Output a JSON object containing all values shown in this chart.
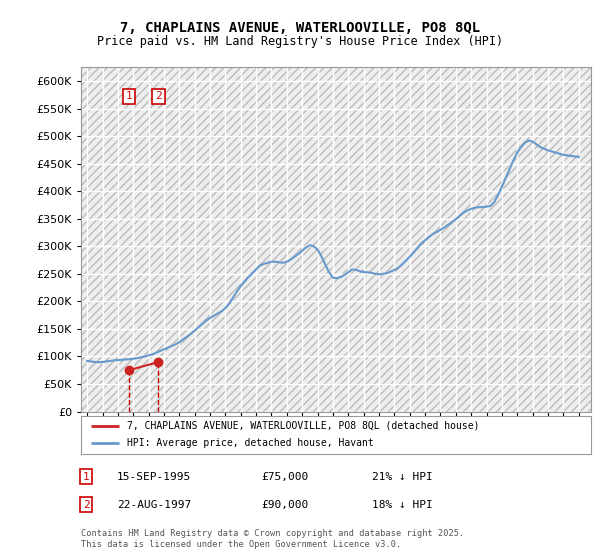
{
  "title": "7, CHAPLAINS AVENUE, WATERLOOVILLE, PO8 8QL",
  "subtitle": "Price paid vs. HM Land Registry's House Price Index (HPI)",
  "ylim": [
    0,
    625000
  ],
  "yticks": [
    0,
    50000,
    100000,
    150000,
    200000,
    250000,
    300000,
    350000,
    400000,
    450000,
    500000,
    550000,
    600000
  ],
  "xlim_start": 1992.6,
  "xlim_end": 2025.8,
  "background_color": "#ffffff",
  "plot_bg_color": "#eeeeee",
  "grid_color": "#ffffff",
  "hpi_color": "#6699cc",
  "price_color": "#cc2222",
  "annotation_color": "#cc0000",
  "legend_label_price": "7, CHAPLAINS AVENUE, WATERLOOVILLE, PO8 8QL (detached house)",
  "legend_label_hpi": "HPI: Average price, detached house, Havant",
  "point1_label": "1",
  "point1_date": "15-SEP-1995",
  "point1_x": 1995.71,
  "point1_y": 75000,
  "point1_text": "£75,000",
  "point1_pct": "21% ↓ HPI",
  "point2_label": "2",
  "point2_date": "22-AUG-1997",
  "point2_x": 1997.64,
  "point2_y": 90000,
  "point2_text": "£90,000",
  "point2_pct": "18% ↓ HPI",
  "copyright": "Contains HM Land Registry data © Crown copyright and database right 2025.\nThis data is licensed under the Open Government Licence v3.0.",
  "hpi_years": [
    1993.0,
    1993.25,
    1993.5,
    1993.75,
    1994.0,
    1994.25,
    1994.5,
    1994.75,
    1995.0,
    1995.25,
    1995.5,
    1995.75,
    1996.0,
    1996.25,
    1996.5,
    1996.75,
    1997.0,
    1997.25,
    1997.5,
    1997.75,
    1998.0,
    1998.25,
    1998.5,
    1998.75,
    1999.0,
    1999.25,
    1999.5,
    1999.75,
    2000.0,
    2000.25,
    2000.5,
    2000.75,
    2001.0,
    2001.25,
    2001.5,
    2001.75,
    2002.0,
    2002.25,
    2002.5,
    2002.75,
    2003.0,
    2003.25,
    2003.5,
    2003.75,
    2004.0,
    2004.25,
    2004.5,
    2004.75,
    2005.0,
    2005.25,
    2005.5,
    2005.75,
    2006.0,
    2006.25,
    2006.5,
    2006.75,
    2007.0,
    2007.25,
    2007.5,
    2007.75,
    2008.0,
    2008.25,
    2008.5,
    2008.75,
    2009.0,
    2009.25,
    2009.5,
    2009.75,
    2010.0,
    2010.25,
    2010.5,
    2010.75,
    2011.0,
    2011.25,
    2011.5,
    2011.75,
    2012.0,
    2012.25,
    2012.5,
    2012.75,
    2013.0,
    2013.25,
    2013.5,
    2013.75,
    2014.0,
    2014.25,
    2014.5,
    2014.75,
    2015.0,
    2015.25,
    2015.5,
    2015.75,
    2016.0,
    2016.25,
    2016.5,
    2016.75,
    2017.0,
    2017.25,
    2017.5,
    2017.75,
    2018.0,
    2018.25,
    2018.5,
    2018.75,
    2019.0,
    2019.25,
    2019.5,
    2019.75,
    2020.0,
    2020.25,
    2020.5,
    2020.75,
    2021.0,
    2021.25,
    2021.5,
    2021.75,
    2022.0,
    2022.25,
    2022.5,
    2022.75,
    2023.0,
    2023.25,
    2023.5,
    2023.75,
    2024.0,
    2024.25,
    2024.5,
    2024.75,
    2025.0
  ],
  "hpi_values": [
    92000,
    91000,
    90000,
    89500,
    90000,
    91000,
    92000,
    93000,
    93500,
    94000,
    94500,
    95000,
    96000,
    97000,
    98500,
    100000,
    102000,
    104000,
    107000,
    110000,
    113000,
    116000,
    119000,
    122000,
    126000,
    131000,
    136000,
    141000,
    147000,
    153000,
    159000,
    165000,
    170000,
    174000,
    178000,
    182000,
    188000,
    196000,
    207000,
    218000,
    228000,
    236000,
    244000,
    251000,
    258000,
    265000,
    268000,
    270000,
    272000,
    272000,
    271000,
    270000,
    272000,
    276000,
    281000,
    286000,
    292000,
    298000,
    302000,
    300000,
    294000,
    282000,
    267000,
    253000,
    243000,
    242000,
    244000,
    248000,
    253000,
    258000,
    257000,
    255000,
    253000,
    253000,
    252000,
    250000,
    249000,
    250000,
    251000,
    254000,
    257000,
    261000,
    267000,
    274000,
    281000,
    289000,
    297000,
    305000,
    311000,
    317000,
    322000,
    326000,
    330000,
    334000,
    339000,
    344000,
    349000,
    355000,
    361000,
    365000,
    368000,
    370000,
    371000,
    371000,
    372000,
    373000,
    380000,
    393000,
    408000,
    424000,
    440000,
    456000,
    470000,
    480000,
    488000,
    492000,
    490000,
    485000,
    480000,
    477000,
    474000,
    472000,
    470000,
    468000,
    466000,
    465000,
    464000,
    463000,
    462000
  ],
  "price_years": [
    1995.71,
    1997.64
  ],
  "price_values": [
    75000,
    90000
  ]
}
